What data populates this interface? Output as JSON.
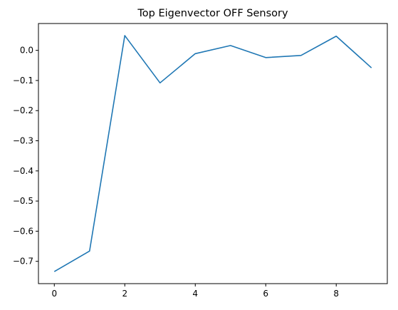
{
  "chart_data": {
    "type": "line",
    "title": "Top Eigenvector OFF Sensory",
    "xlabel": "",
    "ylabel": "",
    "xlim": [
      -0.45,
      9.45
    ],
    "ylim": [
      -0.774,
      0.089
    ],
    "xticks": [
      0,
      2,
      4,
      6,
      8
    ],
    "xtick_labels": [
      "0",
      "2",
      "4",
      "6",
      "8"
    ],
    "yticks": [
      0.0,
      -0.1,
      -0.2,
      -0.3,
      -0.4,
      -0.5,
      -0.6,
      -0.7
    ],
    "ytick_labels": [
      "0.0",
      "−0.1",
      "−0.2",
      "−0.3",
      "−0.4",
      "−0.5",
      "−0.6",
      "−0.7"
    ],
    "grid": false,
    "series": [
      {
        "color": "#1f77b4",
        "x": [
          0,
          1,
          2,
          3,
          4,
          5,
          6,
          7,
          8,
          9
        ],
        "y": [
          -0.734,
          -0.666,
          0.049,
          -0.108,
          -0.011,
          0.016,
          -0.024,
          -0.017,
          0.047,
          -0.058
        ]
      }
    ]
  }
}
